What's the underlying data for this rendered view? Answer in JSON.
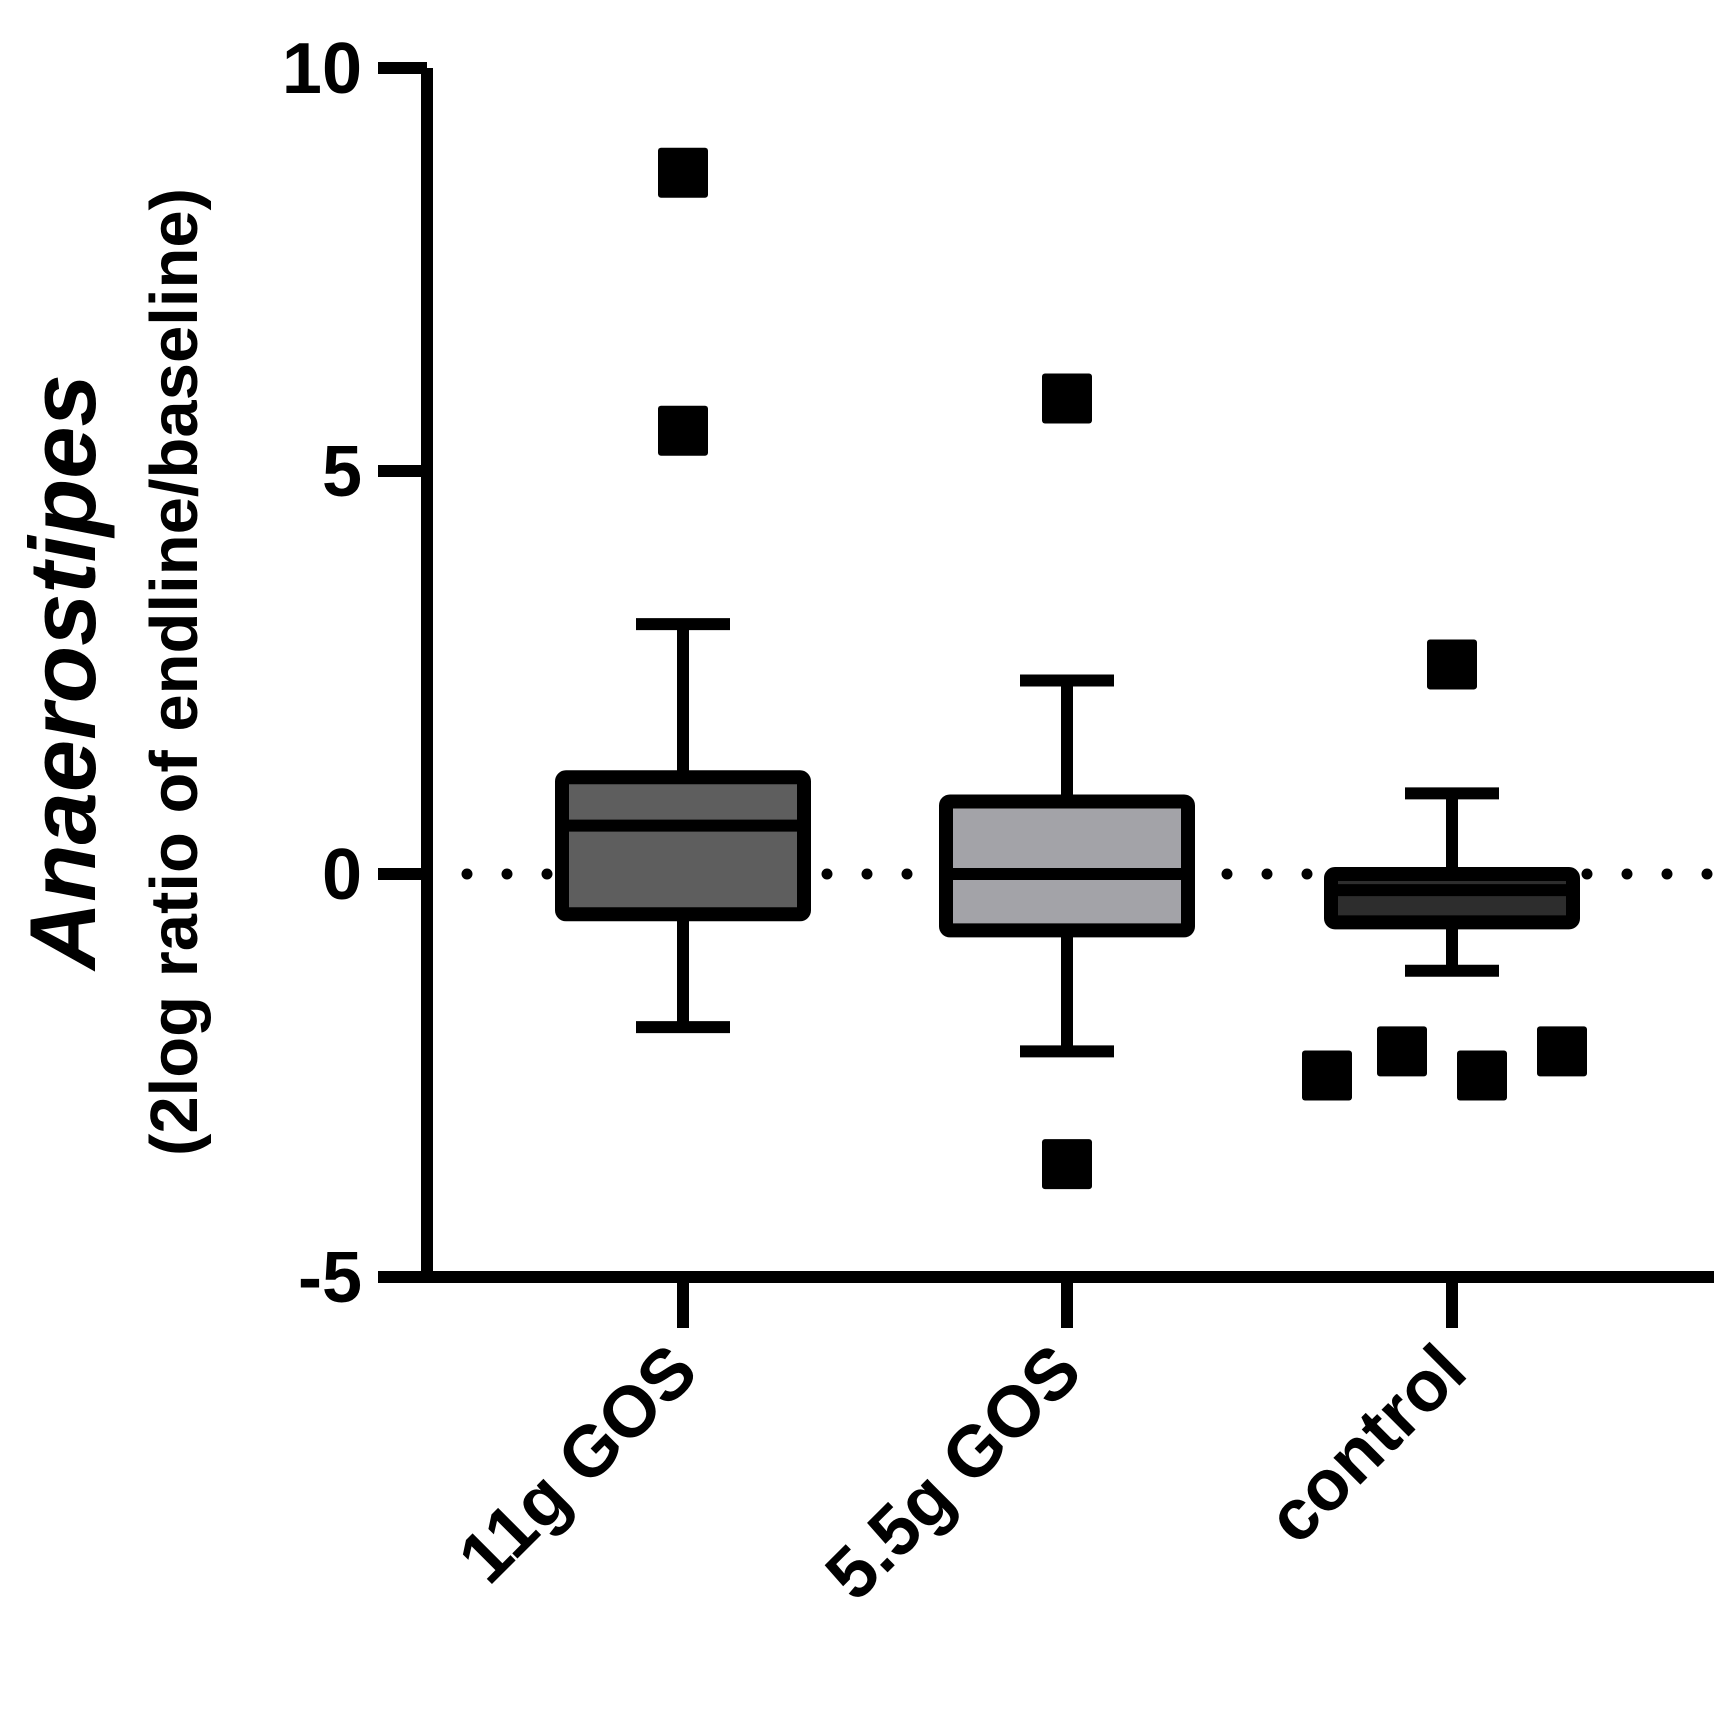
{
  "chart_data": {
    "type": "box",
    "ylabel_main": "Anaerostipes",
    "ylabel_sub": "(2log ratio of endline/baseline)",
    "ylim": [
      -5,
      10
    ],
    "yticks": [
      {
        "value": 10,
        "label": "10"
      },
      {
        "value": 5,
        "label": "5"
      },
      {
        "value": 0,
        "label": "0"
      },
      {
        "value": -5,
        "label": "-5"
      }
    ],
    "reference_line": {
      "value": 0,
      "style": "dotted"
    },
    "categories": [
      "11g GOS",
      "5.5g GOS",
      "control"
    ],
    "boxes": [
      {
        "category": "11g GOS",
        "whisker_low": -1.9,
        "q1": -0.5,
        "median": 0.6,
        "q3": 1.2,
        "whisker_high": 3.1,
        "outliers": [
          8.7,
          5.5
        ],
        "fill": "#5e5e5e"
      },
      {
        "category": "5.5g GOS",
        "whisker_low": -2.2,
        "q1": -0.7,
        "median": 0.0,
        "q3": 0.9,
        "whisker_high": 2.4,
        "outliers": [
          5.9,
          -3.6
        ],
        "fill": "#a3a3a8"
      },
      {
        "category": "control",
        "whisker_low": -1.2,
        "q1": -0.6,
        "median": -0.2,
        "q3": 0.0,
        "whisker_high": 1.0,
        "outliers": [
          2.6,
          -2.5,
          -2.2,
          -2.5,
          -2.2
        ],
        "fill": "#2d2d2d"
      }
    ]
  }
}
